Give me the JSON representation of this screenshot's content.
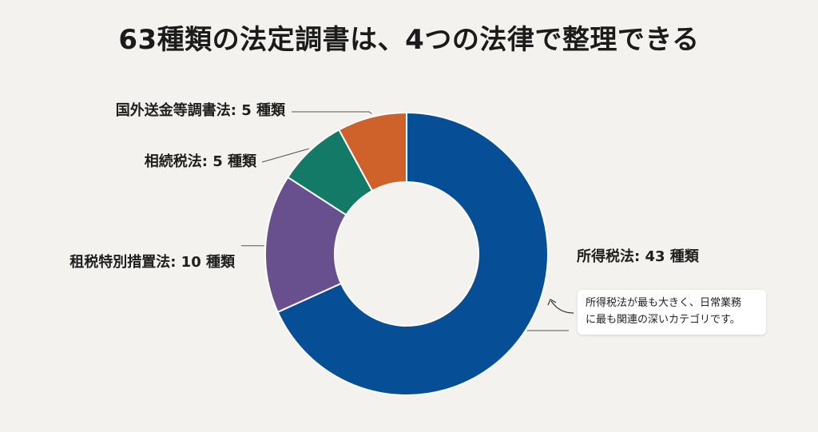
{
  "title": "63種類の法定調書は、4つの法律で整理できる",
  "chart_data": {
    "type": "pie",
    "variant": "donut",
    "total": 63,
    "unit": "種類",
    "title": "63種類の法定調書は、4つの法律で整理できる",
    "slices": [
      {
        "name": "所得税法",
        "value": 43,
        "color": "#064f96",
        "label": "所得税法: 43 種類"
      },
      {
        "name": "租税特別措置法",
        "value": 10,
        "color": "#68508f",
        "label": "租税特別措置法: 10 種類"
      },
      {
        "name": "相続税法",
        "value": 5,
        "color": "#127a66",
        "label": "相続税法: 5 種類"
      },
      {
        "name": "国外送金等調書法",
        "value": 5,
        "color": "#cf622a",
        "label": "国外送金等調書法: 5 種類"
      }
    ]
  },
  "note": {
    "line1": "所得税法が最も大きく、日常業務",
    "line2": "に最も関連の深いカテゴリです。"
  }
}
